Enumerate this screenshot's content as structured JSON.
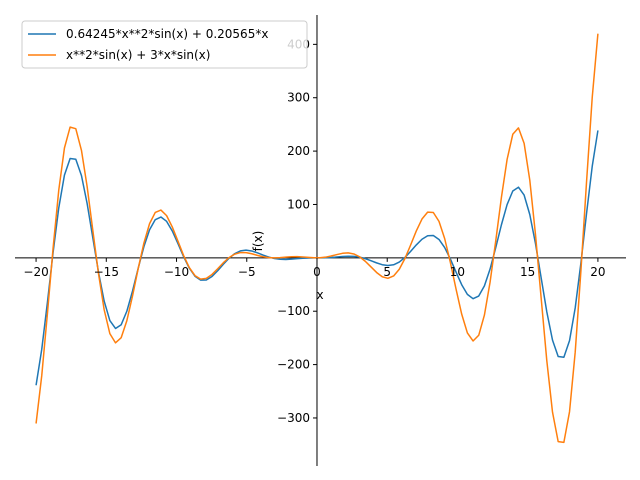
{
  "chart_data": {
    "type": "line",
    "title": "",
    "xlabel": "x",
    "ylabel": "f(x)",
    "xlim": [
      -21.5,
      22.0
    ],
    "ylim": [
      -390,
      455
    ],
    "grid": false,
    "legend_position": "top-left",
    "xticks": [
      -20,
      -15,
      -10,
      -5,
      0,
      5,
      10,
      15,
      20
    ],
    "yticks": [
      -300,
      -200,
      -100,
      100,
      200,
      300,
      400
    ],
    "xtick_labels": [
      "−20",
      "−15",
      "−10",
      "−5",
      "0",
      "5",
      "10",
      "15",
      "20"
    ],
    "ytick_labels": [
      "−300",
      "−200",
      "−100",
      "100",
      "200",
      "300",
      "400"
    ],
    "x_range": [
      -20,
      20
    ],
    "series": [
      {
        "name": "0.64245*x**2*sin(x) + 0.20565*x",
        "color": "#1f77b4",
        "expression": "0.64245*x**2*sin(x) + 0.20565*x",
        "sample_points": [
          [
            -20,
            -240
          ],
          [
            -17.2,
            190
          ],
          [
            -14.2,
            -132
          ],
          [
            -11.1,
            76
          ],
          [
            -7.9,
            -40
          ],
          [
            -5,
            13
          ],
          [
            0,
            0
          ],
          [
            5,
            -16
          ],
          [
            8.2,
            43
          ],
          [
            11.2,
            -77
          ],
          [
            14.3,
            132
          ],
          [
            17.4,
            -190
          ],
          [
            20,
            240
          ]
        ]
      },
      {
        "name": "x**2*sin(x) + 3*x*sin(x)",
        "color": "#ff7f0e",
        "expression": "x**2*sin(x) + 3*x*sin(x)",
        "sample_points": [
          [
            -20,
            -311
          ],
          [
            -17.2,
            250
          ],
          [
            -14.2,
            -160
          ],
          [
            -11.1,
            89
          ],
          [
            -7.9,
            -34
          ],
          [
            -4.9,
            9
          ],
          [
            0,
            0
          ],
          [
            5,
            -38
          ],
          [
            8.2,
            89
          ],
          [
            11.2,
            -155
          ],
          [
            14.3,
            245
          ],
          [
            17.4,
            -351
          ],
          [
            20,
            419
          ]
        ]
      }
    ]
  }
}
